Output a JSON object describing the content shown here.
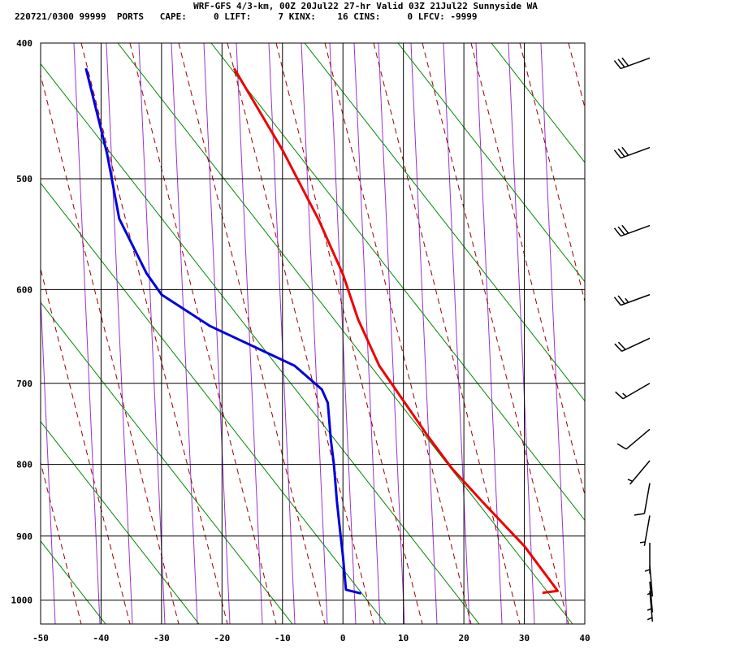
{
  "header": {
    "title": "WRF-GFS 4/3-km, 00Z 20Jul22 27-hr Valid 03Z 21Jul22 Sunnyside WA",
    "indices": "220721/0300 99999  PORTS   CAPE:     0 LIFT:     7 KINX:    16 CINS:     0 LFCV: -9999"
  },
  "chart_data": {
    "type": "line",
    "diagram": "skew-T log-p",
    "x_ticks": [
      -50,
      -40,
      -30,
      -20,
      -10,
      0,
      10,
      20,
      30,
      40
    ],
    "y_ticks": [
      400,
      500,
      600,
      700,
      800,
      900,
      1000
    ],
    "xlim": [
      -50,
      40
    ],
    "ylim": [
      1040,
      400
    ],
    "grid": true,
    "colors": {
      "temperature": "#ee0000",
      "dewpoint": "#0000dd",
      "dry_adiabats": "#008800",
      "moist_adiabats": "#990000",
      "mixing_ratio": "#9933cc",
      "grid": "#000000"
    },
    "series": [
      {
        "key": "temperature",
        "points": [
          {
            "x": 33,
            "p": 988
          },
          {
            "x": 35.5,
            "p": 985
          },
          {
            "x": 35,
            "p": 978
          },
          {
            "x": 30,
            "p": 915
          },
          {
            "x": 23,
            "p": 850
          },
          {
            "x": 18,
            "p": 805
          },
          {
            "x": 14,
            "p": 763
          },
          {
            "x": 9,
            "p": 710
          },
          {
            "x": 6,
            "p": 680
          },
          {
            "x": 2.5,
            "p": 630
          },
          {
            "x": 0,
            "p": 585
          },
          {
            "x": -4,
            "p": 535
          },
          {
            "x": -10,
            "p": 477
          },
          {
            "x": -18,
            "p": 417
          }
        ]
      },
      {
        "key": "dewpoint",
        "points": [
          {
            "x": 3,
            "p": 989
          },
          {
            "x": 0.5,
            "p": 983
          },
          {
            "x": 0,
            "p": 930
          },
          {
            "x": -0.5,
            "p": 890
          },
          {
            "x": -1,
            "p": 850
          },
          {
            "x": -1.5,
            "p": 800
          },
          {
            "x": -2,
            "p": 768
          },
          {
            "x": -2.5,
            "p": 723
          },
          {
            "x": -3.5,
            "p": 707
          },
          {
            "x": -8,
            "p": 680
          },
          {
            "x": -22,
            "p": 637
          },
          {
            "x": -30,
            "p": 605
          },
          {
            "x": -32.5,
            "p": 584
          },
          {
            "x": -37,
            "p": 534
          },
          {
            "x": -39,
            "p": 480
          },
          {
            "x": -42.5,
            "p": 417
          }
        ]
      }
    ],
    "wind_barbs": [
      {
        "p": 410,
        "speed_kt": 30,
        "dir_deg": 250
      },
      {
        "p": 475,
        "speed_kt": 30,
        "dir_deg": 250
      },
      {
        "p": 540,
        "speed_kt": 30,
        "dir_deg": 250
      },
      {
        "p": 605,
        "speed_kt": 25,
        "dir_deg": 250
      },
      {
        "p": 650,
        "speed_kt": 20,
        "dir_deg": 245
      },
      {
        "p": 700,
        "speed_kt": 15,
        "dir_deg": 240
      },
      {
        "p": 755,
        "speed_kt": 10,
        "dir_deg": 230
      },
      {
        "p": 795,
        "speed_kt": 5,
        "dir_deg": 220
      },
      {
        "p": 825,
        "speed_kt": 10,
        "dir_deg": 190
      },
      {
        "p": 870,
        "speed_kt": 5,
        "dir_deg": 190
      },
      {
        "p": 910,
        "speed_kt": 5,
        "dir_deg": 180
      },
      {
        "p": 945,
        "speed_kt": 5,
        "dir_deg": 175
      },
      {
        "p": 970,
        "speed_kt": 5,
        "dir_deg": 175
      },
      {
        "p": 985,
        "speed_kt": 5,
        "dir_deg": 175
      }
    ]
  }
}
